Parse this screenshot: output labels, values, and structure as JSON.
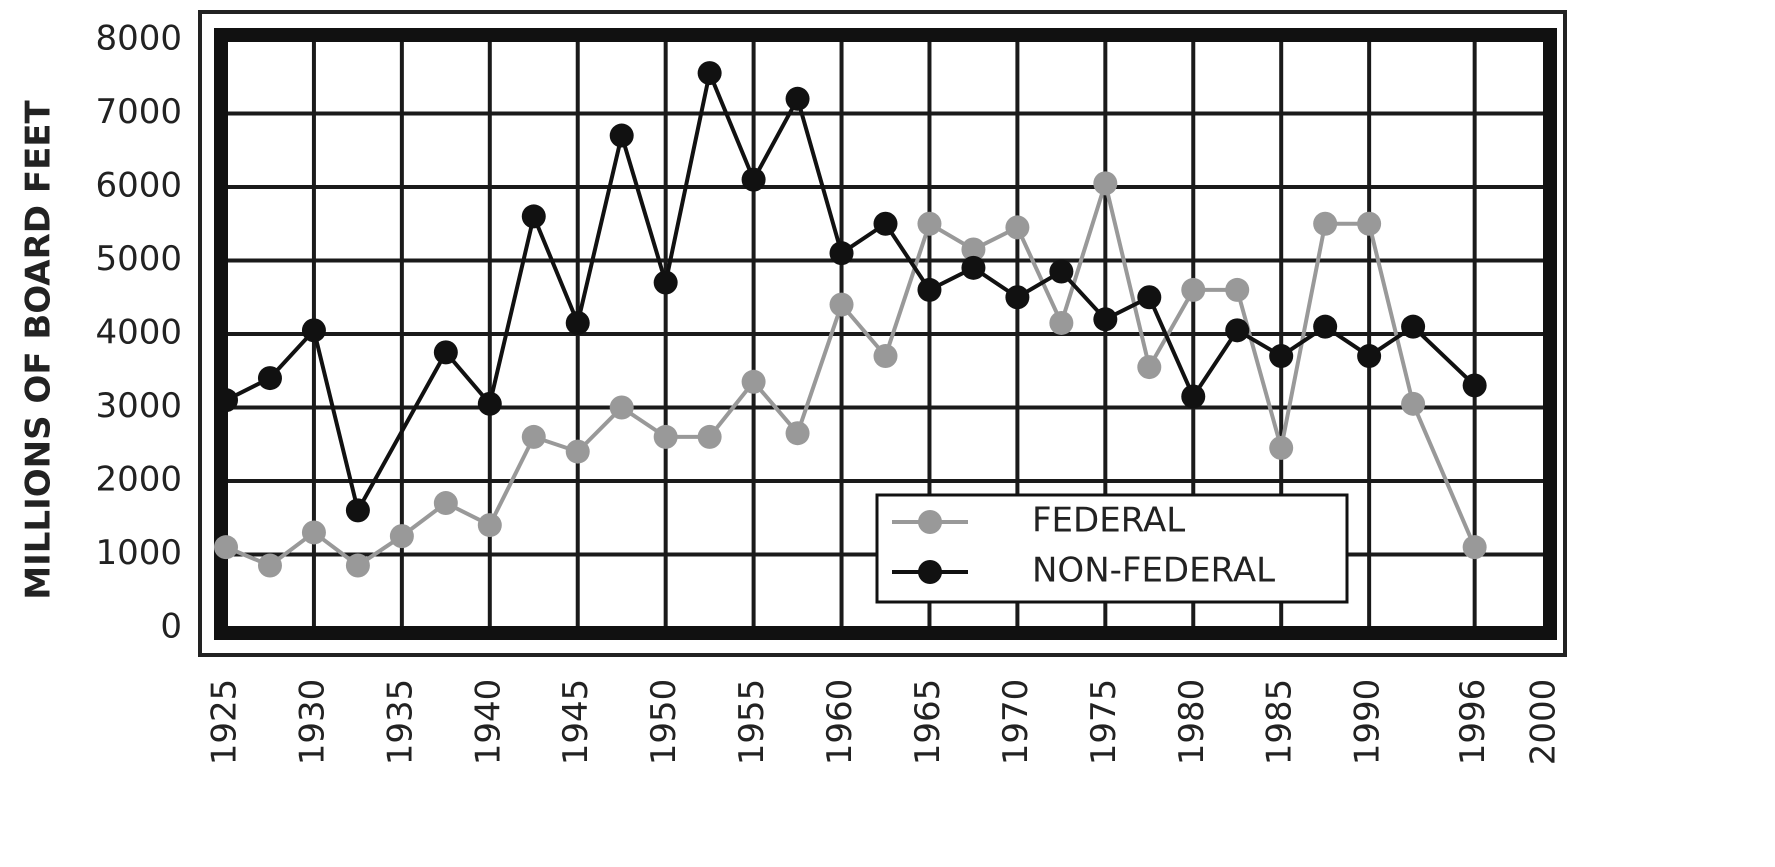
{
  "chart_data": {
    "type": "line",
    "y_label": "MILLIONS OF BOARD FEET",
    "xlim": [
      1925,
      2000
    ],
    "xticks": [
      1925,
      1930,
      1935,
      1940,
      1945,
      1950,
      1955,
      1960,
      1965,
      1970,
      1975,
      1980,
      1985,
      1990,
      1996,
      2000
    ],
    "ylim": [
      0,
      8000
    ],
    "yticks": [
      0,
      1000,
      2000,
      3000,
      4000,
      5000,
      6000,
      7000,
      8000
    ],
    "grid": true,
    "legend": "lower right",
    "series": [
      {
        "name": "FEDERAL",
        "color": "#999999",
        "x": [
          1925,
          1927.5,
          1930,
          1932.5,
          1935,
          1937.5,
          1940,
          1942.5,
          1945,
          1947.5,
          1950,
          1952.5,
          1955,
          1957.5,
          1960,
          1962.5,
          1965,
          1967.5,
          1970,
          1972.5,
          1975,
          1977.5,
          1980,
          1982.5,
          1985,
          1987.5,
          1990,
          1992.5,
          1996
        ],
        "values": [
          1100,
          850,
          1300,
          850,
          1250,
          1700,
          1400,
          2600,
          2400,
          3000,
          2600,
          2600,
          3350,
          2650,
          4400,
          3700,
          5500,
          5150,
          5450,
          4150,
          6050,
          3550,
          4600,
          4600,
          2450,
          5500,
          5500,
          3050,
          1100
        ]
      },
      {
        "name": "NON-FEDERAL",
        "color": "#111111",
        "x": [
          1925,
          1927.5,
          1930,
          1932.5,
          1937.5,
          1940,
          1942.5,
          1945,
          1947.5,
          1950,
          1952.5,
          1955,
          1957.5,
          1960,
          1962.5,
          1965,
          1967.5,
          1970,
          1972.5,
          1975,
          1977.5,
          1980,
          1982.5,
          1985,
          1987.5,
          1990,
          1992.5,
          1996
        ],
        "values": [
          3100,
          3400,
          4050,
          1600,
          3750,
          3050,
          5600,
          4150,
          6700,
          4700,
          7550,
          6100,
          7200,
          5100,
          5500,
          4600,
          4900,
          4500,
          4850,
          4200,
          4500,
          3150,
          4050,
          3700,
          4100,
          3700,
          4100,
          3300
        ]
      }
    ]
  }
}
